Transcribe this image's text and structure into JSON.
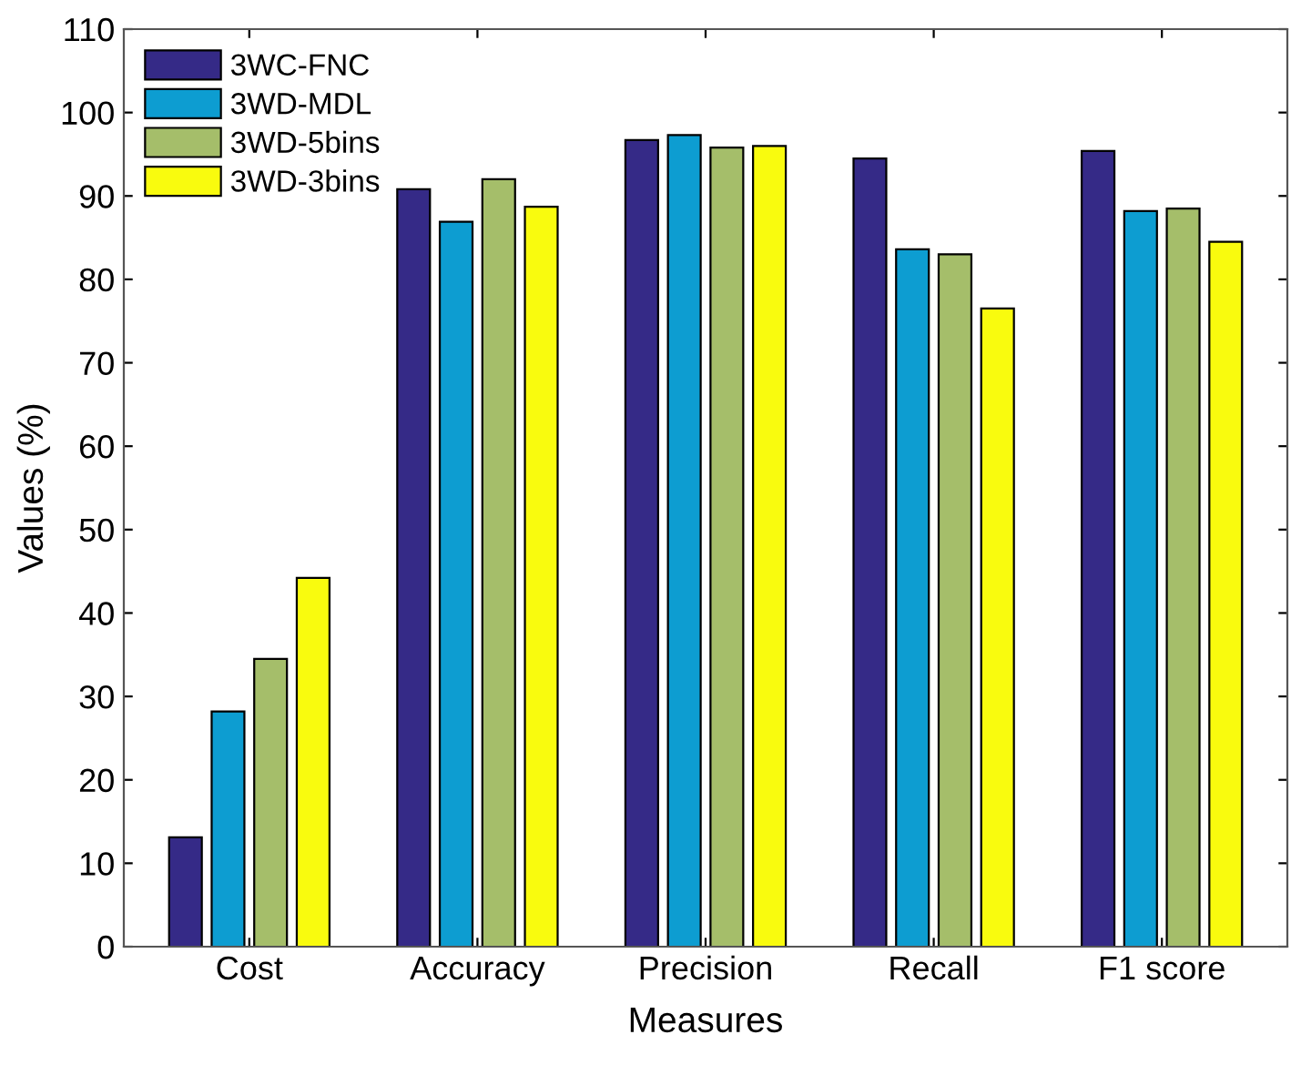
{
  "chart_data": {
    "type": "bar",
    "xlabel": "Measures",
    "ylabel": "Values (%)",
    "categories": [
      "Cost",
      "Accuracy",
      "Precision",
      "Recall",
      "F1 score"
    ],
    "series": [
      {
        "name": "3WC-FNC",
        "color": "#352a87",
        "values": [
          13.1,
          90.8,
          96.7,
          94.5,
          95.4
        ]
      },
      {
        "name": "3WD-MDL",
        "color": "#0d9dd1",
        "values": [
          28.2,
          86.9,
          97.3,
          83.6,
          88.2
        ]
      },
      {
        "name": "3WD-5bins",
        "color": "#a5be6a",
        "values": [
          34.5,
          92.0,
          95.8,
          83.0,
          88.5
        ]
      },
      {
        "name": "3WD-3bins",
        "color": "#f9fb0e",
        "values": [
          44.2,
          88.7,
          96.0,
          76.5,
          84.5
        ]
      }
    ],
    "ylim": [
      0,
      110
    ],
    "yticks": [
      0,
      10,
      20,
      30,
      40,
      50,
      60,
      70,
      80,
      90,
      100,
      110
    ],
    "grid": false,
    "legend": "top left"
  }
}
